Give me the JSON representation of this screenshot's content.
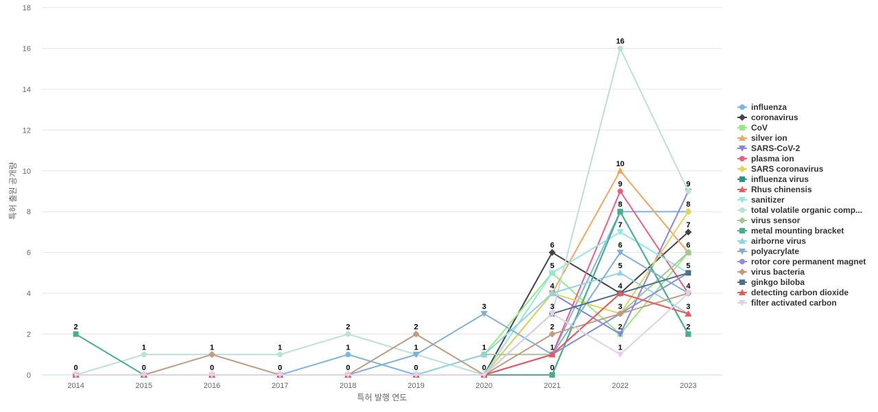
{
  "chart_data": {
    "type": "line",
    "title": "",
    "xlabel": "특허 발행 연도",
    "ylabel": "특허 출원 공개량",
    "categories": [
      "2014",
      "2015",
      "2016",
      "2017",
      "2018",
      "2019",
      "2020",
      "2021",
      "2022",
      "2023"
    ],
    "yticks": [
      "0",
      "2",
      "4",
      "6",
      "8",
      "10",
      "12",
      "14",
      "16",
      "18"
    ],
    "ylim": [
      0,
      18
    ],
    "grid": true,
    "legend_position": "right",
    "series": [
      {
        "name": "influenza",
        "color": "#7cb5ec",
        "marker": "circle",
        "values": [
          0,
          0,
          0,
          0,
          1,
          0,
          0,
          1,
          8,
          8
        ]
      },
      {
        "name": "coronavirus",
        "color": "#434348",
        "marker": "diamond",
        "values": [
          0,
          0,
          0,
          0,
          0,
          0,
          0,
          6,
          4,
          7
        ]
      },
      {
        "name": "CoV",
        "color": "#90ed7d",
        "marker": "square",
        "values": [
          0,
          0,
          0,
          0,
          0,
          0,
          1,
          5,
          2,
          6
        ]
      },
      {
        "name": "silver ion",
        "color": "#f7a35c",
        "marker": "triangle",
        "values": [
          0,
          0,
          0,
          0,
          0,
          0,
          0,
          4,
          10,
          6
        ]
      },
      {
        "name": "SARS-CoV-2",
        "color": "#8085e9",
        "marker": "triangle-down",
        "values": [
          0,
          0,
          0,
          0,
          0,
          0,
          0,
          4,
          2,
          9
        ]
      },
      {
        "name": "plasma ion",
        "color": "#f15c80",
        "marker": "circle",
        "values": [
          0,
          0,
          0,
          0,
          0,
          0,
          0,
          1,
          9,
          4
        ]
      },
      {
        "name": "SARS coronavirus",
        "color": "#e4d354",
        "marker": "diamond",
        "values": [
          0,
          0,
          0,
          0,
          0,
          0,
          0,
          4,
          3,
          8
        ]
      },
      {
        "name": "influenza virus",
        "color": "#2b908f",
        "marker": "square",
        "values": [
          0,
          0,
          0,
          0,
          0,
          0,
          0,
          0,
          8,
          2
        ]
      },
      {
        "name": "Rhus chinensis",
        "color": "#f45b5b",
        "marker": "triangle",
        "values": [
          0,
          0,
          0,
          0,
          0,
          0,
          0,
          1,
          4,
          3
        ]
      },
      {
        "name": "sanitizer",
        "color": "#91e8e1",
        "marker": "triangle-down",
        "values": [
          0,
          0,
          0,
          0,
          0,
          0,
          0,
          5,
          7,
          5
        ]
      },
      {
        "name": "total volatile organic comp...",
        "color": "#b9e2d6",
        "marker": "circle",
        "values": [
          0,
          1,
          1,
          1,
          2,
          1,
          0,
          3,
          16,
          9
        ]
      },
      {
        "name": "virus sensor",
        "color": "#a5c592",
        "marker": "diamond",
        "values": [
          0,
          0,
          0,
          0,
          0,
          0,
          1,
          1,
          3,
          6
        ]
      },
      {
        "name": "metal mounting bracket",
        "color": "#45b08c",
        "marker": "square",
        "values": [
          2,
          0,
          0,
          0,
          0,
          0,
          0,
          0,
          8,
          2
        ]
      },
      {
        "name": "airborne virus",
        "color": "#8fd3e5",
        "marker": "triangle",
        "values": [
          0,
          0,
          0,
          0,
          0,
          0,
          1,
          4,
          5,
          3
        ]
      },
      {
        "name": "polyacrylate",
        "color": "#7eaedc",
        "marker": "triangle-down",
        "values": [
          0,
          0,
          0,
          0,
          0,
          1,
          3,
          1,
          6,
          4
        ]
      },
      {
        "name": "rotor core permanent magnet",
        "color": "#8a8fdc",
        "marker": "circle",
        "values": [
          0,
          0,
          0,
          0,
          0,
          0,
          0,
          1,
          3,
          5
        ]
      },
      {
        "name": "virus bacteria",
        "color": "#c49a7e",
        "marker": "diamond",
        "values": [
          0,
          0,
          1,
          0,
          0,
          2,
          0,
          2,
          3,
          4
        ]
      },
      {
        "name": "ginkgo biloba",
        "color": "#4e6e8e",
        "marker": "square",
        "values": [
          0,
          0,
          0,
          0,
          0,
          0,
          0,
          3,
          4,
          5
        ]
      },
      {
        "name": "detecting carbon dioxide",
        "color": "#e85a5a",
        "marker": "triangle",
        "values": [
          0,
          0,
          0,
          0,
          0,
          0,
          0,
          1,
          4,
          3
        ]
      },
      {
        "name": "filter activated carbon",
        "color": "#e0d0e8",
        "marker": "triangle-down",
        "values": [
          0,
          0,
          0,
          0,
          0,
          0,
          0,
          3,
          1,
          4
        ]
      }
    ],
    "data_labels": [
      {
        "x": "2014",
        "values": [
          "2",
          "0"
        ]
      },
      {
        "x": "2015",
        "values": [
          "1",
          "0"
        ]
      },
      {
        "x": "2016",
        "values": [
          "1",
          "0"
        ]
      },
      {
        "x": "2017",
        "values": [
          "1",
          "0"
        ]
      },
      {
        "x": "2018",
        "values": [
          "2",
          "1",
          "0"
        ]
      },
      {
        "x": "2019",
        "values": [
          "2",
          "1",
          "0"
        ]
      },
      {
        "x": "2020",
        "values": [
          "3",
          "1",
          "0"
        ]
      },
      {
        "x": "2021",
        "values": [
          "6",
          "5",
          "4",
          "3",
          "2",
          "1",
          "0"
        ]
      },
      {
        "x": "2022",
        "values": [
          "16",
          "10",
          "9",
          "8",
          "7",
          "6",
          "5",
          "4",
          "3",
          "2",
          "1"
        ]
      },
      {
        "x": "2023",
        "values": [
          "9",
          "8",
          "7",
          "6",
          "5",
          "4",
          "3",
          "2"
        ]
      }
    ]
  }
}
